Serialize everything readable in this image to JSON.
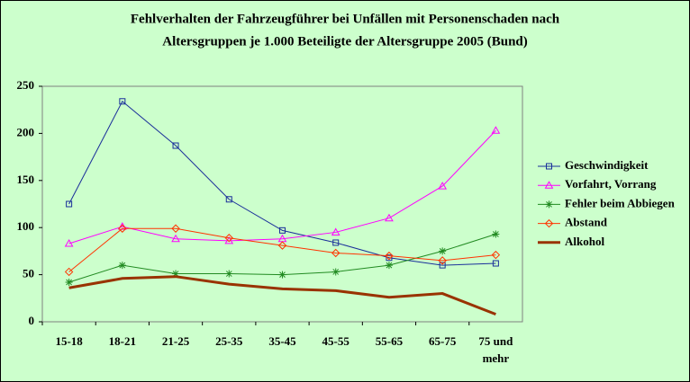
{
  "chart_data": {
    "type": "line",
    "title": [
      "Fehlverhalten der Fahrzeugführer bei Unfällen mit Personenschaden nach",
      "Altersgruppen je 1.000 Beteiligte der Altersgruppe 2005 (Bund)"
    ],
    "categories": [
      "15-18",
      "18-21",
      "21-25",
      "25-35",
      "35-45",
      "45-55",
      "55-65",
      "65-75",
      "75 und mehr"
    ],
    "ylim": [
      0,
      250
    ],
    "yticks": [
      0,
      50,
      100,
      150,
      200,
      250
    ],
    "grid": false,
    "legend": "right",
    "series": [
      {
        "name": "Geschwindigkeit",
        "color": "#1a2f9a",
        "marker": "square",
        "values": [
          125,
          234,
          187,
          130,
          97,
          84,
          68,
          60,
          62
        ]
      },
      {
        "name": "Vorfahrt, Vorrang",
        "color": "#ff00ff",
        "marker": "triangle",
        "values": [
          83,
          101,
          88,
          86,
          88,
          95,
          110,
          144,
          203
        ]
      },
      {
        "name": "Fehler beim Abbiegen",
        "color": "#228b22",
        "marker": "star",
        "values": [
          42,
          60,
          51,
          51,
          50,
          53,
          60,
          75,
          93
        ]
      },
      {
        "name": "Abstand",
        "color": "#ff3300",
        "marker": "diamond",
        "values": [
          53,
          99,
          99,
          89,
          81,
          73,
          70,
          65,
          71
        ]
      },
      {
        "name": "Alkohol",
        "color": "#993300",
        "marker": "none",
        "width": 3,
        "values": [
          36,
          46,
          48,
          40,
          35,
          33,
          26,
          30,
          8
        ]
      }
    ]
  }
}
